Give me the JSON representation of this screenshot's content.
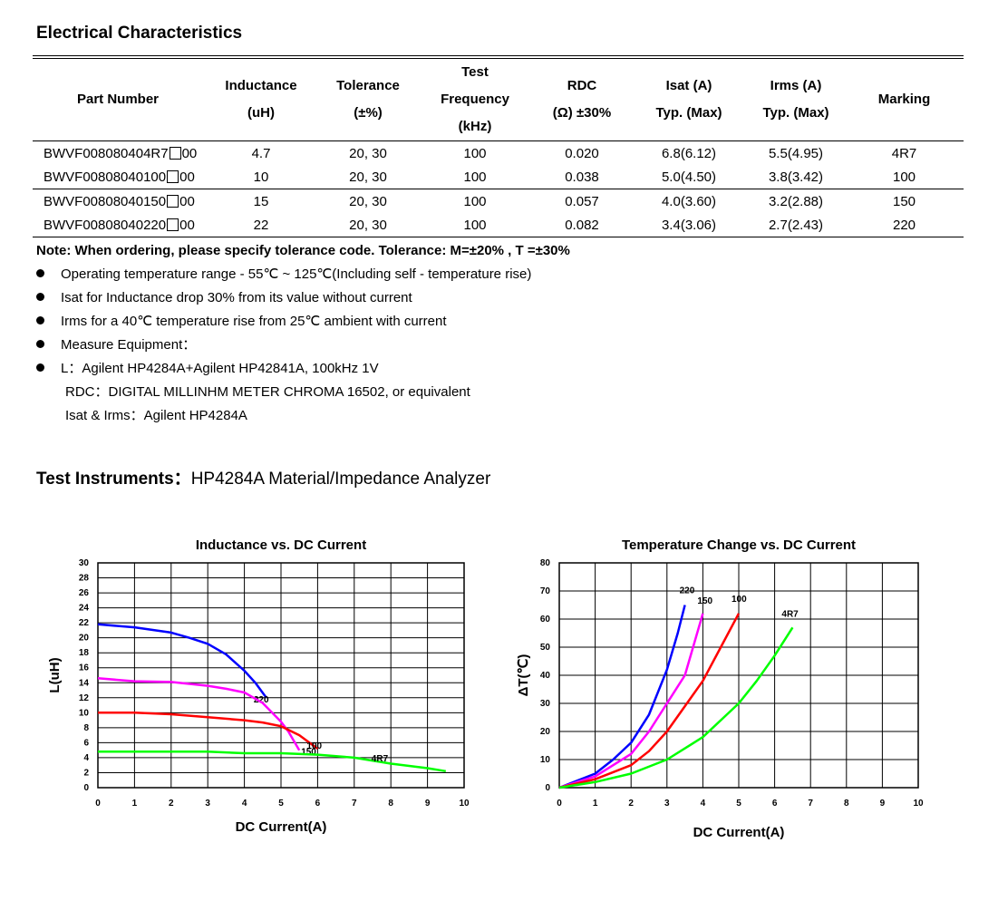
{
  "title": "Electrical Characteristics",
  "table": {
    "headers": {
      "part": "Part Number",
      "ind1": "Inductance",
      "ind2": "(uH)",
      "tol1": "Tolerance",
      "tol2": "(±%)",
      "freq1": "Test",
      "freq2": "Frequency",
      "freq3": "(kHz)",
      "rdc1": "RDC",
      "rdc2": "(Ω) ±30%",
      "isat1": "Isat (A)",
      "isat2": "Typ. (Max)",
      "irms1": "Irms (A)",
      "irms2": "Typ. (Max)",
      "mark": "Marking"
    },
    "rows": [
      {
        "pn_pre": "BWVF008080404R7",
        "pn_suf": "00",
        "ind": "4.7",
        "tol": "20, 30",
        "freq": "100",
        "rdc": "0.020",
        "isat": "6.8(6.12)",
        "irms": "5.5(4.95)",
        "mark": "4R7"
      },
      {
        "pn_pre": "BWVF00808040100",
        "pn_suf": "00",
        "ind": "10",
        "tol": "20, 30",
        "freq": "100",
        "rdc": "0.038",
        "isat": "5.0(4.50)",
        "irms": "3.8(3.42)",
        "mark": "100"
      },
      {
        "pn_pre": "BWVF00808040150",
        "pn_suf": "00",
        "ind": "15",
        "tol": "20, 30",
        "freq": "100",
        "rdc": "0.057",
        "isat": "4.0(3.60)",
        "irms": "3.2(2.88)",
        "mark": "150"
      },
      {
        "pn_pre": "BWVF00808040220",
        "pn_suf": "00",
        "ind": "22",
        "tol": "20, 30",
        "freq": "100",
        "rdc": "0.082",
        "isat": "3.4(3.06)",
        "irms": "2.7(2.43)",
        "mark": "220"
      }
    ]
  },
  "note": "Note: When ordering, please specify tolerance code. Tolerance: M=±20% , T =±30%",
  "bullets": [
    "Operating temperature range - 55℃ ~ 125℃(Including self - temperature rise)",
    "Isat for Inductance drop 30% from its value without current",
    "Irms for a 40℃  temperature rise from 25℃  ambient with current",
    "Measure Equipment：",
    "L：Agilent HP4284A+Agilent HP42841A, 100kHz 1V"
  ],
  "sublines": [
    "RDC：DIGITAL MILLINHM METER CHROMA 16502, or equivalent",
    "Isat & Irms：Agilent HP4284A"
  ],
  "instruments": {
    "label": "Test Instruments：",
    "value": "HP4284A Material/Impedance Analyzer"
  },
  "colors": {
    "220": "#0000ff",
    "150": "#ff00ff",
    "100": "#ff0000",
    "4R7": "#00ff00"
  },
  "chart_data": [
    {
      "type": "line",
      "title": "Inductance vs. DC Current",
      "xlabel": "DC Current(A)",
      "ylabel": "L(uH)",
      "xlim": [
        0,
        10
      ],
      "ylim": [
        0,
        30
      ],
      "xticks": [
        0,
        1,
        2,
        3,
        4,
        5,
        6,
        7,
        8,
        9,
        10
      ],
      "yticks": [
        0,
        2,
        4,
        6,
        8,
        10,
        12,
        14,
        16,
        18,
        20,
        22,
        24,
        26,
        28,
        30
      ],
      "grid": true,
      "series": [
        {
          "name": "220",
          "x": [
            0,
            1,
            2,
            2.5,
            3,
            3.5,
            4,
            4.3,
            4.6
          ],
          "y": [
            21.8,
            21.4,
            20.7,
            20,
            19.2,
            17.8,
            15.6,
            14,
            12
          ]
        },
        {
          "name": "150",
          "x": [
            0,
            1,
            2,
            3,
            3.5,
            4,
            4.5,
            5,
            5.2,
            5.5
          ],
          "y": [
            14.6,
            14.2,
            14.1,
            13.6,
            13.2,
            12.7,
            11.3,
            8.8,
            7.5,
            5
          ]
        },
        {
          "name": "100",
          "x": [
            0,
            1,
            2,
            3,
            4,
            4.5,
            5,
            5.5,
            6
          ],
          "y": [
            10,
            10,
            9.8,
            9.4,
            9,
            8.7,
            8.2,
            7,
            5.2
          ]
        },
        {
          "name": "4R7",
          "x": [
            0,
            1,
            2,
            3,
            4,
            5,
            6,
            7,
            8,
            9,
            9.5
          ],
          "y": [
            4.8,
            4.8,
            4.8,
            4.8,
            4.6,
            4.6,
            4.4,
            4,
            3.2,
            2.6,
            2.2
          ]
        }
      ]
    },
    {
      "type": "line",
      "title": "Temperature Change vs. DC Current",
      "xlabel": "DC Current(A)",
      "ylabel": "ΔT(℃)",
      "xlim": [
        0,
        10
      ],
      "ylim": [
        0,
        80
      ],
      "xticks": [
        0,
        1,
        2,
        3,
        4,
        5,
        6,
        7,
        8,
        9,
        10
      ],
      "yticks": [
        0,
        10,
        20,
        30,
        40,
        50,
        60,
        70,
        80
      ],
      "grid": true,
      "series": [
        {
          "name": "220",
          "x": [
            0,
            1,
            1.5,
            2,
            2.5,
            3,
            3.3,
            3.5
          ],
          "y": [
            0,
            5,
            10,
            16,
            26,
            42,
            55,
            65
          ]
        },
        {
          "name": "150",
          "x": [
            0,
            1,
            1.5,
            2,
            2.5,
            3,
            3.5,
            4
          ],
          "y": [
            0,
            4,
            8,
            12,
            20,
            30,
            40,
            62
          ]
        },
        {
          "name": "100",
          "x": [
            0,
            1,
            2,
            2.5,
            3,
            3.5,
            4,
            4.5,
            5
          ],
          "y": [
            0,
            3,
            8,
            13,
            20,
            29,
            38,
            50,
            62
          ]
        },
        {
          "name": "4R7",
          "x": [
            0,
            1,
            2,
            3,
            4,
            5,
            5.5,
            6,
            6.5
          ],
          "y": [
            0,
            2,
            5,
            10,
            18,
            30,
            38,
            47,
            57
          ]
        }
      ]
    }
  ]
}
